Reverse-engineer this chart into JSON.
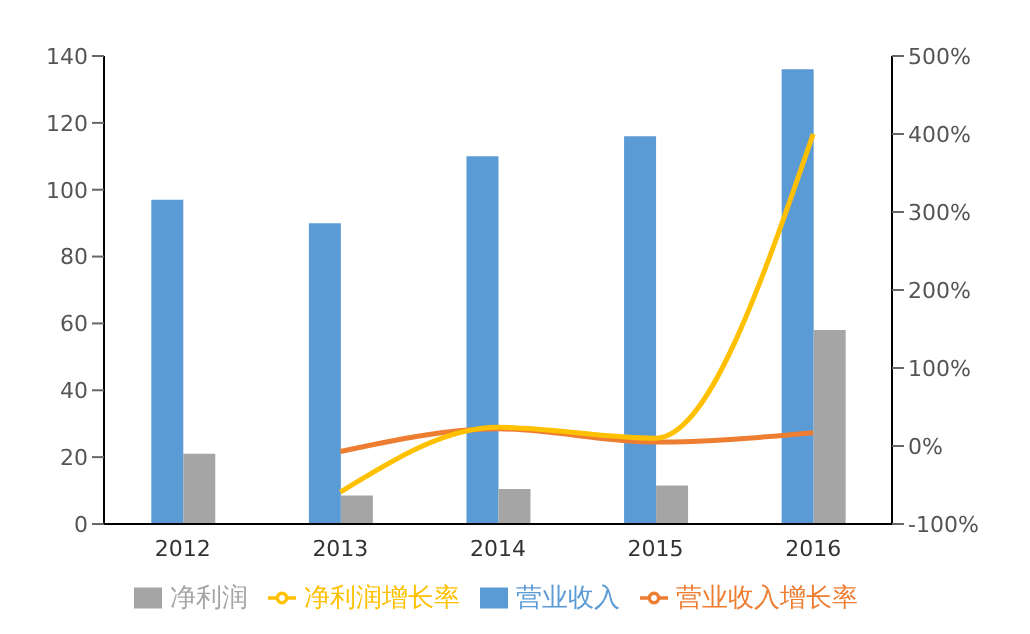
{
  "chart_data": {
    "type": "bar",
    "categories": [
      "2012",
      "2013",
      "2014",
      "2015",
      "2016"
    ],
    "series": [
      {
        "name": "营业收入",
        "color": "#5b9bd5",
        "values": [
          97,
          90,
          110,
          116,
          136
        ]
      },
      {
        "name": "净利润",
        "color": "#a5a5a5",
        "values": [
          21,
          8.5,
          10.5,
          11.5,
          58
        ]
      },
      {
        "name": "营业收入增长率",
        "type": "line",
        "axis": "y2",
        "color": "#ed7d31",
        "values": [
          null,
          -7,
          22,
          5,
          17
        ]
      },
      {
        "name": "净利润增长率",
        "type": "line",
        "axis": "y2",
        "color": "#ffc000",
        "values": [
          null,
          -59,
          24,
          10,
          400
        ]
      }
    ],
    "ylim": [
      0,
      140
    ],
    "yticks": [
      0,
      20,
      40,
      60,
      80,
      100,
      120,
      140
    ],
    "y2lim": [
      -100,
      500
    ],
    "y2ticks": [
      {
        "value": -100,
        "label": "-100%"
      },
      {
        "value": 0,
        "label": "0%"
      },
      {
        "value": 100,
        "label": "100%"
      },
      {
        "value": 200,
        "label": "200%"
      },
      {
        "value": 300,
        "label": "300%"
      },
      {
        "value": 400,
        "label": "400%"
      },
      {
        "value": 500,
        "label": "500%"
      }
    ],
    "legend": "bottom",
    "marker": "none",
    "line_style": "solid"
  }
}
